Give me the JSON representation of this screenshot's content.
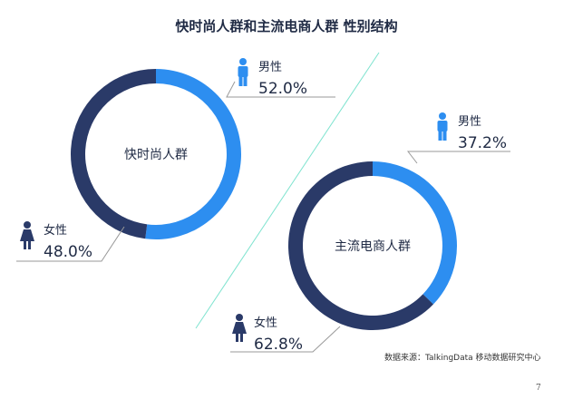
{
  "title": "快时尚人群和主流电商人群   性别结构",
  "source": "数据来源：TalkingData 移动数据研究中心",
  "page_number": "7",
  "colors": {
    "male": "#2d8ef0",
    "female": "#2a3a68",
    "divider": "#7ee3cf",
    "leader": "#999999"
  },
  "icons": {
    "male": "male-person-icon",
    "female": "female-person-icon"
  },
  "chart_data": [
    {
      "type": "pie",
      "name": "快时尚人群",
      "categories": [
        "男性",
        "女性"
      ],
      "values": [
        52.0,
        48.0
      ],
      "labels": [
        "52.0%",
        "48.0%"
      ],
      "colors": [
        "#2d8ef0",
        "#2a3a68"
      ]
    },
    {
      "type": "pie",
      "name": "主流电商人群",
      "categories": [
        "男性",
        "女性"
      ],
      "values": [
        37.2,
        62.8
      ],
      "labels": [
        "37.2%",
        "62.8%"
      ],
      "colors": [
        "#2d8ef0",
        "#2a3a68"
      ]
    }
  ]
}
